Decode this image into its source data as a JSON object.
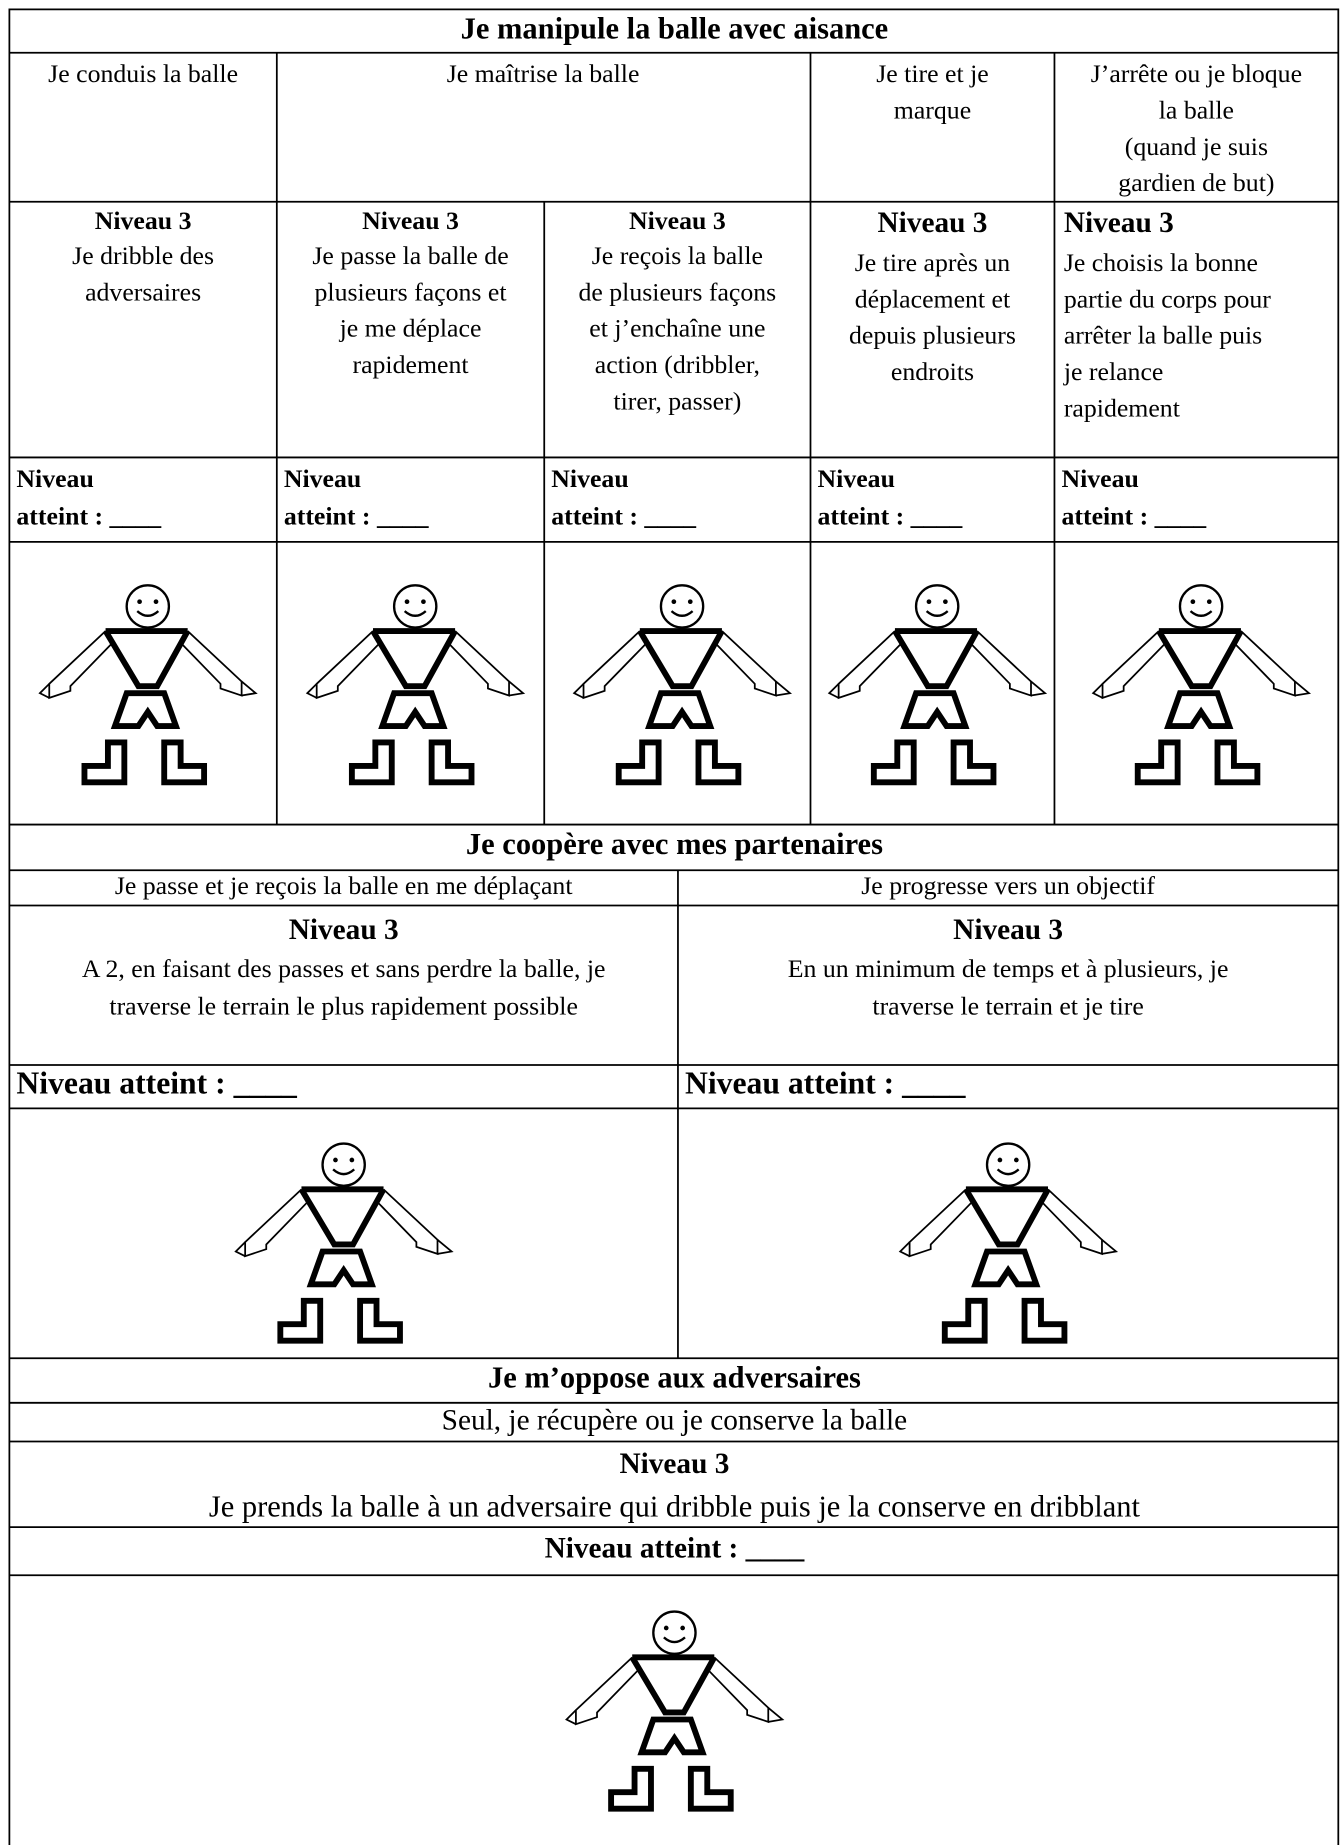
{
  "sections": [
    {
      "title": "Je manipule la balle avec aisance",
      "skills": [
        [
          "Je conduis la balle"
        ],
        [
          "Je maîtrise la balle"
        ],
        [
          "Je tire et je",
          "marque"
        ],
        [
          "J’arrête ou je bloque",
          "la balle",
          "(quand je suis",
          "gardien de but)"
        ]
      ],
      "levels": [
        {
          "level": "Niveau 3",
          "lines": [
            "Je dribble des",
            "adversaires"
          ],
          "result": [
            "Niveau",
            "atteint : ____"
          ]
        },
        {
          "level": "Niveau 3",
          "lines": [
            "Je passe la balle de",
            "plusieurs façons et",
            "je me déplace",
            "rapidement"
          ],
          "result": [
            "Niveau",
            "atteint : ____"
          ]
        },
        {
          "level": "Niveau 3",
          "lines": [
            "Je reçois la balle",
            "de plusieurs façons",
            "et j’enchaîne une",
            "action (dribbler,",
            "tirer, passer)"
          ],
          "result": [
            "Niveau",
            "atteint : ____"
          ]
        },
        {
          "level": "Niveau 3",
          "lines": [
            "Je tire après un",
            "déplacement et",
            "depuis plusieurs",
            "endroits"
          ],
          "result": [
            "Niveau",
            "atteint : ____"
          ]
        },
        {
          "level": "Niveau 3",
          "lines": [
            "Je choisis la bonne",
            "partie du corps pour",
            "arrêter la balle puis",
            "je relance",
            "rapidement"
          ],
          "result": [
            "Niveau",
            "atteint : ____"
          ]
        }
      ]
    },
    {
      "title": "Je coopère avec mes partenaires",
      "skills": [
        [
          "Je passe et je reçois la balle en me déplaçant"
        ],
        [
          "Je progresse vers un objectif"
        ]
      ],
      "levels": [
        {
          "level": "Niveau 3",
          "lines": [
            "A 2, en faisant des passes et sans perdre la balle, je",
            "traverse le terrain le plus rapidement possible"
          ],
          "result": [
            "Niveau atteint : ____"
          ]
        },
        {
          "level": "Niveau 3",
          "lines": [
            "En un minimum de temps et à plusieurs, je",
            "traverse le terrain et je tire"
          ],
          "result": [
            "Niveau atteint : ____"
          ]
        }
      ]
    },
    {
      "title": "Je m’oppose aux adversaires",
      "skills": [
        [
          "Seul, je récupère ou je conserve la balle"
        ]
      ],
      "levels": [
        {
          "level": "Niveau 3",
          "lines": [
            "Je prends la balle à un adversaire qui dribble puis je la conserve en dribblant"
          ],
          "result": [
            "Niveau atteint : ____"
          ]
        }
      ]
    }
  ]
}
